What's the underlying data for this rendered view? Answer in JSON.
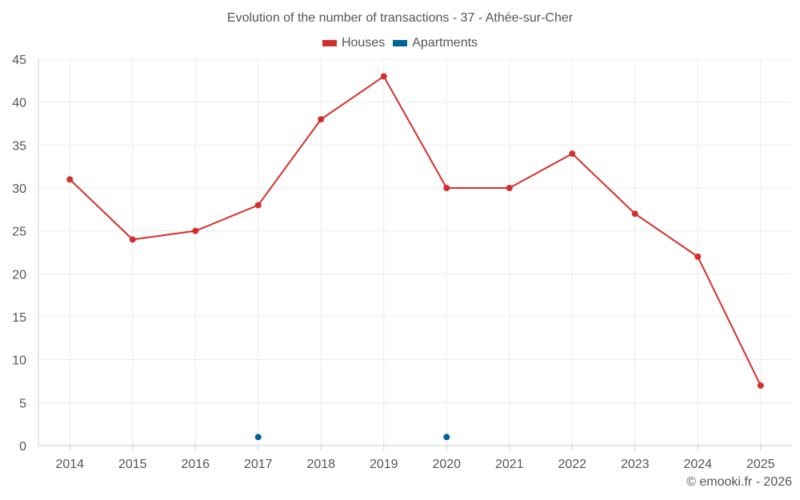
{
  "title": "Evolution of the number of transactions - 37 - Athée-sur-Cher",
  "credit": "© emooki.fr - 2026",
  "colors": {
    "houses": "#d32f2f",
    "apartments": "#00649a",
    "grid": "#ececec",
    "axis": "#cccccc"
  },
  "chart_data": {
    "type": "line",
    "title": "Evolution of the number of transactions - 37 - Athée-sur-Cher",
    "xlabel": "",
    "ylabel": "",
    "categories": [
      "2014",
      "2015",
      "2016",
      "2017",
      "2018",
      "2019",
      "2020",
      "2021",
      "2022",
      "2023",
      "2024",
      "2025"
    ],
    "ylim": [
      0,
      45
    ],
    "yticks": [
      0,
      5,
      10,
      15,
      20,
      25,
      30,
      35,
      40,
      45
    ],
    "grid": true,
    "legend_position": "top-center",
    "series": [
      {
        "name": "Houses",
        "color": "#d32f2f",
        "values": [
          31,
          24,
          25,
          28,
          38,
          43,
          30,
          30,
          34,
          27,
          22,
          7
        ]
      },
      {
        "name": "Apartments",
        "color": "#00649a",
        "values": [
          null,
          null,
          null,
          1,
          null,
          null,
          1,
          null,
          null,
          null,
          null,
          null
        ]
      }
    ]
  }
}
